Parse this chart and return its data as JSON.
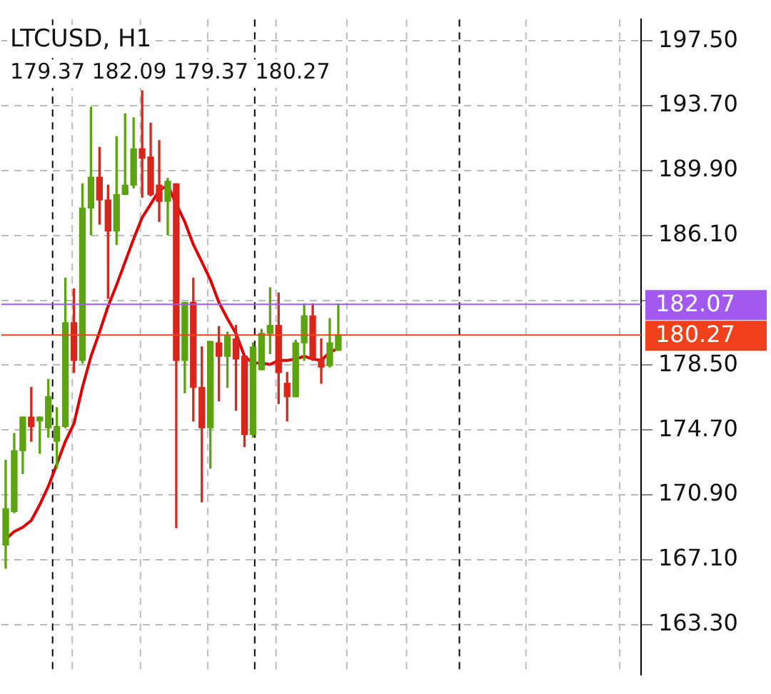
{
  "chart_data": {
    "type": "candlestick",
    "title": "LTCUSD, H1",
    "subtitle": "179.37 182.09 179.37 180.27",
    "categories": [
      null,
      null,
      null,
      null,
      null,
      null,
      null,
      null,
      null,
      null,
      null,
      null,
      null,
      null,
      null,
      null,
      null,
      null,
      null,
      null,
      null,
      null,
      null,
      null,
      null,
      null,
      null,
      null,
      null,
      null,
      null,
      null,
      null,
      null,
      null,
      null,
      null,
      null,
      null,
      null,
      null,
      null,
      null,
      null,
      null,
      null,
      null,
      null,
      null,
      null,
      null,
      null,
      null,
      null,
      null,
      null,
      null,
      null,
      null,
      null,
      null,
      null,
      null,
      null,
      null,
      null,
      null,
      null,
      null,
      null,
      null,
      null,
      null,
      null,
      null
    ],
    "ohlc": [
      [
        167.96,
        172.93,
        166.6,
        170.09
      ],
      [
        169.93,
        174.5,
        169.86,
        173.49
      ],
      [
        173.49,
        175.46,
        172.14,
        175.46
      ],
      [
        175.46,
        177.2,
        174.04,
        174.9
      ],
      [
        175.23,
        175.46,
        173.33,
        175.46
      ],
      [
        174.83,
        177.67,
        174.28,
        176.65
      ],
      [
        174.04,
        176.01,
        172.46,
        174.91
      ],
      [
        174.91,
        183.6,
        174.83,
        180.99
      ],
      [
        180.99,
        182.97,
        178.07,
        178.78
      ],
      [
        178.78,
        189.13,
        178.62,
        187.71
      ],
      [
        187.71,
        193.63,
        186.13,
        189.52
      ],
      [
        189.52,
        191.26,
        186.76,
        188.18
      ],
      [
        188.18,
        189.05,
        182.41,
        186.36
      ],
      [
        186.36,
        191.89,
        185.57,
        188.5
      ],
      [
        188.5,
        193.23,
        188.5,
        189.05
      ],
      [
        189.05,
        193.0,
        188.89,
        191.18
      ],
      [
        191.18,
        194.58,
        188.34,
        190.63
      ],
      [
        190.7,
        192.68,
        188.42,
        188.5
      ],
      [
        189.05,
        191.66,
        186.92,
        188.1
      ],
      [
        188.1,
        189.44,
        186.13,
        189.28
      ],
      [
        189.13,
        189.13,
        168.98,
        178.78
      ],
      [
        178.78,
        182.18,
        176.88,
        182.18
      ],
      [
        182.18,
        183.6,
        175.23,
        177.2
      ],
      [
        177.2,
        179.57,
        170.49,
        174.83
      ],
      [
        174.83,
        179.89,
        172.46,
        179.89
      ],
      [
        179.81,
        180.76,
        176.41,
        179.02
      ],
      [
        179.02,
        180.44,
        177.2,
        180.2
      ],
      [
        180.04,
        180.83,
        175.86,
        178.86
      ],
      [
        179.02,
        179.02,
        173.72,
        174.44
      ],
      [
        174.44,
        179.81,
        174.28,
        179.57
      ],
      [
        178.23,
        180.6,
        178.23,
        180.36
      ],
      [
        180.36,
        183.04,
        179.17,
        180.83
      ],
      [
        180.83,
        182.73,
        176.25,
        178.07
      ],
      [
        177.44,
        178.07,
        175.23,
        176.65
      ],
      [
        176.65,
        179.96,
        176.65,
        179.81
      ],
      [
        179.81,
        182.1,
        178.78,
        181.39
      ],
      [
        181.39,
        182.1,
        178.78,
        178.86
      ],
      [
        178.86,
        180.04,
        177.44,
        178.39
      ],
      [
        178.47,
        181.23,
        178.39,
        179.81
      ],
      [
        179.37,
        182.09,
        179.37,
        180.27
      ],
      null,
      null,
      null,
      null,
      null,
      null,
      null,
      null,
      null,
      null,
      null,
      null,
      null,
      null,
      null,
      null,
      null,
      null,
      null,
      null,
      null,
      null,
      null,
      null,
      null,
      null,
      null,
      null,
      null,
      null,
      null,
      null,
      null,
      null,
      null
    ],
    "colors": [
      "#5ba40f",
      "#5ba40f",
      "#5ba40f",
      "#d9261c",
      "#5ba40f",
      "#5ba40f",
      "#5ba40f",
      "#5ba40f",
      "#d9261c",
      "#5ba40f",
      "#5ba40f",
      "#d9261c",
      "#d9261c",
      "#5ba40f",
      "#5ba40f",
      "#5ba40f",
      "#d9261c",
      "#d9261c",
      "#d9261c",
      "#5ba40f",
      "#d9261c",
      "#5ba40f",
      "#d9261c",
      "#d9261c",
      "#5ba40f",
      "#d9261c",
      "#5ba40f",
      "#d9261c",
      "#d9261c",
      "#5ba40f",
      "#5ba40f",
      "#5ba40f",
      "#d9261c",
      "#d9261c",
      "#5ba40f",
      "#5ba40f",
      "#d9261c",
      "#d9261c",
      "#5ba40f",
      "#5ba40f",
      null,
      null,
      null,
      null,
      null,
      null,
      null,
      null,
      null,
      null,
      null,
      null,
      null,
      null,
      null,
      null,
      null,
      null,
      null,
      null,
      null,
      null,
      null,
      null,
      null,
      null,
      null,
      null,
      null,
      null,
      null,
      null,
      null,
      null,
      null
    ],
    "series": [
      {
        "type": "line",
        "color": "#e00000",
        "values": [
          168.3,
          168.75,
          169.0,
          169.4,
          170.33,
          171.4,
          172.7,
          174.04,
          175.07,
          177.2,
          179.02,
          180.44,
          181.94,
          183.2,
          184.55,
          185.9,
          187.15,
          187.94,
          188.73,
          189.05,
          187.94,
          186.9,
          185.57,
          184.55,
          183.5,
          182.18,
          181.23,
          180.36,
          179.02,
          178.62,
          178.62,
          178.54,
          178.78,
          178.78,
          178.86,
          179.02,
          178.86,
          178.78,
          179.25,
          179.49,
          null,
          null,
          null,
          null,
          null,
          null,
          null,
          null,
          null,
          null,
          null,
          null,
          null,
          null,
          null,
          null,
          null,
          null,
          null,
          null,
          null,
          null,
          null,
          null,
          null,
          null,
          null,
          null,
          null,
          null,
          null,
          null,
          null,
          null,
          null
        ]
      }
    ],
    "ylim": [
      160.37,
      198.76
    ],
    "yticks": [
      {
        "value": 163.3,
        "label": "163.30"
      },
      {
        "value": 167.1,
        "label": "167.10"
      },
      {
        "value": 170.9,
        "label": "170.90"
      },
      {
        "value": 174.7,
        "label": "174.70"
      },
      {
        "value": 178.5,
        "label": "178.50"
      },
      {
        "value": 182.3,
        "label": null
      },
      {
        "value": 186.1,
        "label": "186.10"
      },
      {
        "value": 189.9,
        "label": "189.90"
      },
      {
        "value": 193.7,
        "label": "193.70"
      },
      {
        "value": 197.5,
        "label": "197.50"
      }
    ],
    "ref_lines": [
      {
        "axis": "y",
        "value": 182.07,
        "label": "182.07",
        "color": "#a259f0"
      },
      {
        "axis": "y",
        "value": 180.27,
        "label": "180.27",
        "color": "#f0401c"
      }
    ],
    "grid": true,
    "legend": false
  }
}
